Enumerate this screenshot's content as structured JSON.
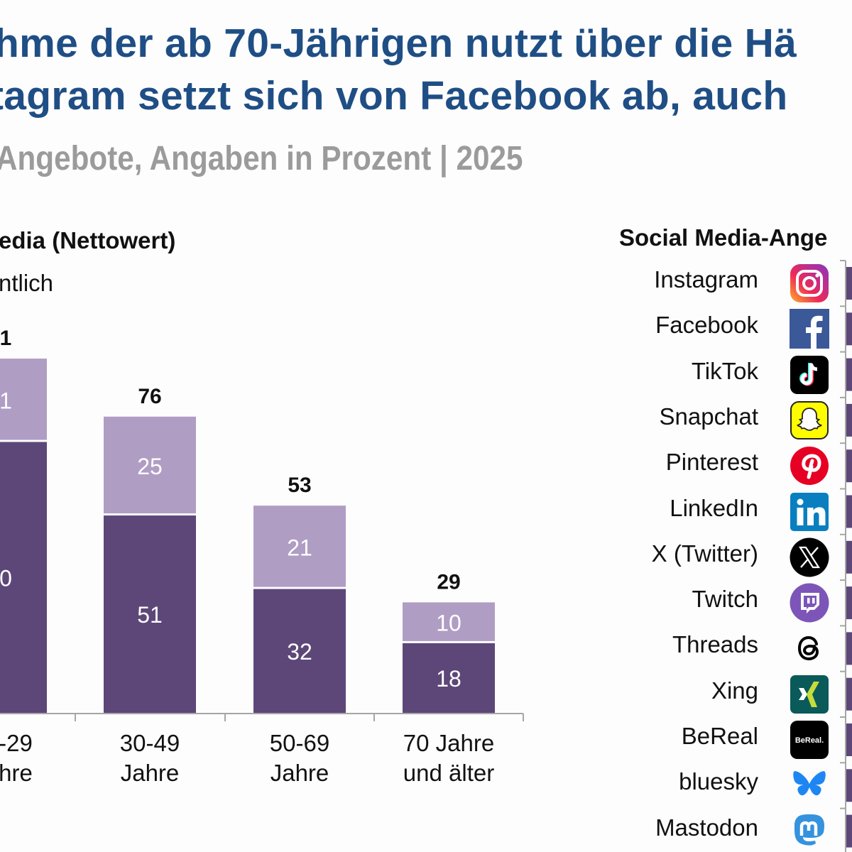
{
  "header": {
    "title_line1": "hme der ab 70-Jährigen nutzt über die Hä",
    "title_line2": "tagram setzt sich von Facebook ab, auch",
    "subtitle": "Angebote, Angaben in Prozent | 2025"
  },
  "left_panel": {
    "title": "edia (Nettowert)",
    "subtitle": "ntlich"
  },
  "right_panel": {
    "title": "Social Media-Ange",
    "platforms": [
      {
        "label": "Instagram",
        "icon": "instagram-icon"
      },
      {
        "label": "Facebook",
        "icon": "facebook-icon"
      },
      {
        "label": "TikTok",
        "icon": "tiktok-icon"
      },
      {
        "label": "Snapchat",
        "icon": "snapchat-icon"
      },
      {
        "label": "Pinterest",
        "icon": "pinterest-icon"
      },
      {
        "label": "LinkedIn",
        "icon": "linkedin-icon"
      },
      {
        "label": "X (Twitter)",
        "icon": "x-twitter-icon"
      },
      {
        "label": "Twitch",
        "icon": "twitch-icon"
      },
      {
        "label": "Threads",
        "icon": "threads-icon"
      },
      {
        "label": "Xing",
        "icon": "xing-icon"
      },
      {
        "label": "BeReal",
        "icon": "bereal-icon"
      },
      {
        "label": "bluesky",
        "icon": "bluesky-icon"
      },
      {
        "label": "Mastodon",
        "icon": "mastodon-icon"
      }
    ]
  },
  "colors": {
    "title": "#1f4e85",
    "subtitle": "#9b9b9b",
    "dark_segment": "#5d4778",
    "light_segment": "#b09dc4",
    "axis": "#a6a6a6"
  },
  "chart_data": [
    {
      "type": "bar",
      "stacked": true,
      "title": "edia (Nettowert)",
      "subtitle": "ntlich",
      "categories": [
        "-29\nhre",
        "30-49\nJahre",
        "50-69\nJahre",
        "70 Jahre\nund älter"
      ],
      "category_lines": [
        [
          "-29",
          "hre"
        ],
        [
          "30-49",
          "Jahre"
        ],
        [
          "50-69",
          "Jahre"
        ],
        [
          "70 Jahre",
          "und älter"
        ]
      ],
      "series": [
        {
          "name": "dark",
          "values": [
            null,
            51,
            32,
            18
          ],
          "labels": [
            "0",
            "51",
            "32",
            "18"
          ]
        },
        {
          "name": "light",
          "values": [
            null,
            25,
            21,
            10
          ],
          "labels": [
            "1",
            "25",
            "21",
            "10"
          ]
        }
      ],
      "totals": [
        null,
        76,
        53,
        29
      ],
      "total_labels": [
        "1",
        "76",
        "53",
        "29"
      ],
      "first_bar_estimate": {
        "dark": 70,
        "light": 21,
        "total": 91
      },
      "ylim": [
        0,
        100
      ],
      "grid": false,
      "legend": "none"
    },
    {
      "type": "bar",
      "orientation": "horizontal",
      "title": "Social Media-Ange",
      "categories": [
        "Instagram",
        "Facebook",
        "TikTok",
        "Snapchat",
        "Pinterest",
        "LinkedIn",
        "X (Twitter)",
        "Twitch",
        "Threads",
        "Xing",
        "BeReal",
        "bluesky",
        "Mastodon"
      ],
      "note": "bars clipped at right edge; values not visible"
    }
  ]
}
